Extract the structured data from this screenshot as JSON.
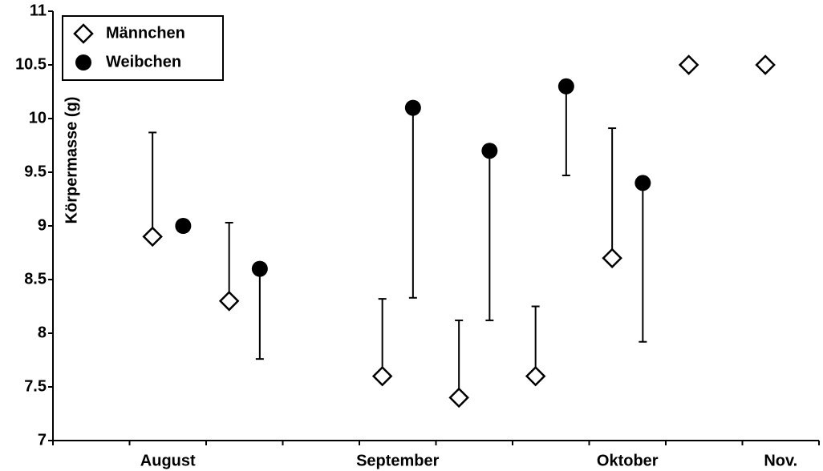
{
  "chart_data": {
    "type": "scatter",
    "y_label": "Körpermasse (g)",
    "xlim": [
      0,
      10
    ],
    "xticks": [
      0,
      1,
      2,
      3,
      4,
      5,
      6,
      7,
      8,
      9,
      10
    ],
    "xtick_labels": [
      {
        "value": 1.5,
        "label": "August"
      },
      {
        "value": 4.5,
        "label": "September"
      },
      {
        "value": 7.5,
        "label": "Oktober"
      },
      {
        "value": 9.5,
        "label": "Nov."
      }
    ],
    "ylim": [
      7,
      11
    ],
    "yticks": [
      7,
      7.5,
      8,
      8.5,
      9,
      9.5,
      10,
      10.5,
      11
    ],
    "legend": "upper left",
    "series": [
      {
        "name": "Männchen",
        "marker": "diamond",
        "color": "#000000",
        "error_direction": "up",
        "x": [
          1.3,
          2.3,
          4.3,
          5.3,
          6.3,
          7.3,
          8.3,
          9.3
        ],
        "values": [
          8.9,
          8.3,
          7.6,
          7.4,
          7.6,
          8.7,
          10.5,
          10.5
        ],
        "errors": [
          0.97,
          0.73,
          0.72,
          0.72,
          0.65,
          1.21,
          null,
          null
        ]
      },
      {
        "name": "Weibchen",
        "marker": "circle",
        "color": "#000000",
        "error_direction": "down",
        "x": [
          1.7,
          2.7,
          4.7,
          5.7,
          6.7,
          7.7
        ],
        "values": [
          9.0,
          8.6,
          10.1,
          9.7,
          10.3,
          9.4
        ],
        "errors": [
          null,
          0.84,
          1.77,
          1.58,
          0.83,
          1.48
        ]
      }
    ]
  }
}
